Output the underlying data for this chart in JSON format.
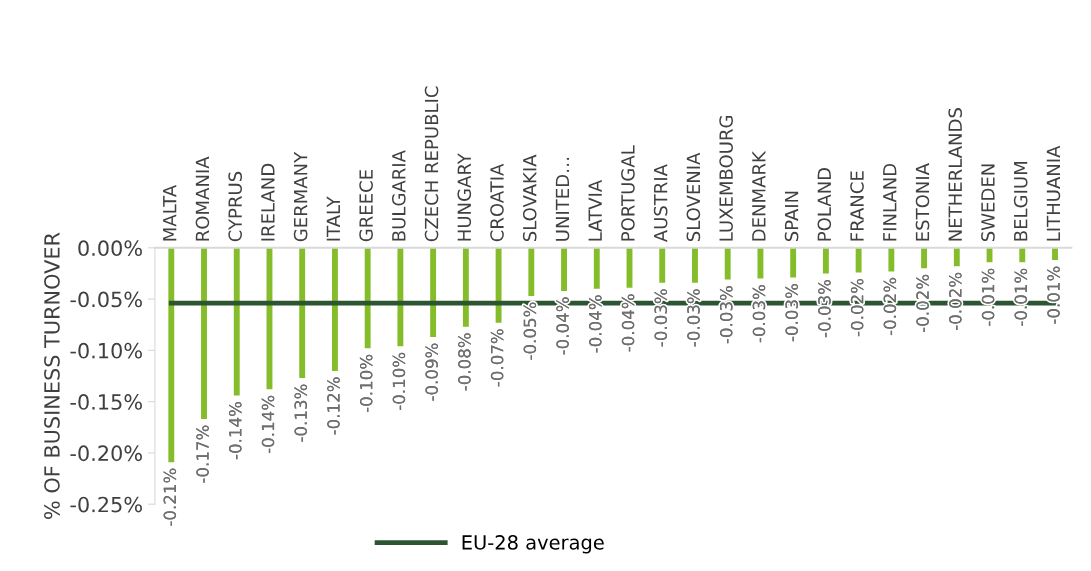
{
  "chart_data": {
    "type": "bar",
    "ylabel": "% OF BUSINESS TURNOVER",
    "categories": [
      "MALTA",
      "ROMANIA",
      "CYPRUS",
      "IRELAND",
      "GERMANY",
      "ITALY",
      "GREECE",
      "BULGARIA",
      "CZECH REPUBLIC",
      "HUNGARY",
      "CROATIA",
      "SLOVAKIA",
      "UNITED…",
      "LATVIA",
      "PORTUGAL",
      "AUSTRIA",
      "SLOVENIA",
      "LUXEMBOURG",
      "DENMARK",
      "SPAIN",
      "POLAND",
      "FRANCE",
      "FINLAND",
      "ESTONIA",
      "NETHERLANDS",
      "SWEDEN",
      "BELGIUM",
      "LITHUANIA"
    ],
    "series": [
      {
        "type": "bar",
        "color": "#84bc2a",
        "values": [
          -0.209,
          -0.167,
          -0.144,
          -0.138,
          -0.127,
          -0.12,
          -0.098,
          -0.096,
          -0.087,
          -0.077,
          -0.073,
          -0.047,
          -0.042,
          -0.04,
          -0.039,
          -0.034,
          -0.034,
          -0.031,
          -0.03,
          -0.029,
          -0.025,
          -0.024,
          -0.023,
          -0.02,
          -0.018,
          -0.014,
          -0.014,
          -0.012
        ],
        "value_labels": [
          "-0.21%",
          "-0.17%",
          "-0.14%",
          "-0.14%",
          "-0.13%",
          "-0.12%",
          "-0.10%",
          "-0.10%",
          "-0.09%",
          "-0.08%",
          "-0.07%",
          "-0.05%",
          "-0.04%",
          "-0.04%",
          "-0.04%",
          "-0.03%",
          "-0.03%",
          "-0.03%",
          "-0.03%",
          "-0.03%",
          "-0.03%",
          "-0.02%",
          "-0.02%",
          "-0.02%",
          "-0.02%",
          "-0.01%",
          "-0.01%",
          "-0.01%"
        ]
      },
      {
        "type": "line",
        "name": "EU-28 average",
        "color": "#2d5532",
        "values": [
          -0.054,
          -0.054,
          -0.054,
          -0.054,
          -0.054,
          -0.054,
          -0.054,
          -0.054,
          -0.054,
          -0.054,
          -0.054,
          -0.054,
          -0.054,
          -0.054,
          -0.054,
          -0.054,
          -0.054,
          -0.054,
          -0.054,
          -0.054,
          -0.054,
          -0.054,
          -0.054,
          -0.054,
          -0.054,
          -0.054,
          -0.054,
          -0.054
        ]
      }
    ],
    "ylim": [
      -0.25,
      0
    ],
    "yticks": [
      {
        "value": 0,
        "label": "0.00%"
      },
      {
        "value": -0.05,
        "label": "-0.05%"
      },
      {
        "value": -0.1,
        "label": "-0.10%"
      },
      {
        "value": -0.15,
        "label": "-0.15%"
      },
      {
        "value": -0.2,
        "label": "-0.20%"
      },
      {
        "value": -0.25,
        "label": "-0.25%"
      }
    ],
    "grid": false,
    "legend": "bottom"
  }
}
